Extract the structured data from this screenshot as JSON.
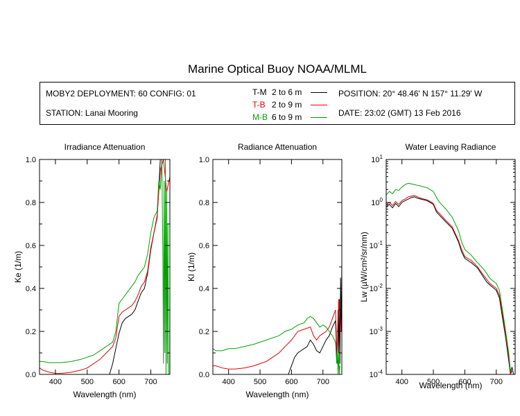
{
  "title": "Marine Optical Buoy NOAA/MLML",
  "info": {
    "deployment": "MOBY2 DEPLOYMENT: 60 CONFIG: 01",
    "station": "STATION: Lanai Mooring",
    "position": "POSITION: 20° 48.46' N   157° 11.29' W",
    "date": "DATE: 23:02 (GMT) 13 Feb 2016",
    "legend": [
      {
        "name": "T-M",
        "range": "2 to 6  m",
        "color": "#000000"
      },
      {
        "name": "T-B",
        "range": "2 to 9  m",
        "color": "#e00000"
      },
      {
        "name": "M-B",
        "range": "6 to 9  m",
        "color": "#00a000"
      }
    ]
  },
  "chart_data": [
    {
      "type": "line",
      "title": "Irradiance Attenuation",
      "xlabel": "Wavelength (nm)",
      "ylabel": "Ke  (1/m)",
      "xlim": [
        350,
        760
      ],
      "ylim": [
        0,
        1.0
      ],
      "xticks": [
        "400",
        "500",
        "600",
        "700"
      ],
      "yticks": [
        "0.0",
        "0.2",
        "0.4",
        "0.6",
        "0.8",
        "1.0"
      ],
      "series": [
        {
          "name": "T-M",
          "color": "#000000",
          "x": [
            570,
            580,
            590,
            600,
            610,
            620,
            630,
            640,
            650,
            660,
            670,
            680,
            690,
            700,
            710,
            720,
            730
          ],
          "y": [
            0.0,
            0.05,
            0.12,
            0.19,
            0.24,
            0.26,
            0.27,
            0.28,
            0.3,
            0.34,
            0.38,
            0.4,
            0.47,
            0.58,
            0.66,
            0.73,
            1.0
          ]
        },
        {
          "name": "T-B",
          "color": "#e00000",
          "x": [
            350,
            360,
            380,
            400,
            420,
            450,
            480,
            500,
            520,
            540,
            560,
            580,
            590,
            600,
            610,
            620,
            630,
            640,
            650,
            660,
            670,
            680,
            690,
            700,
            710,
            720,
            730,
            740,
            750,
            760
          ],
          "y": [
            0.03,
            0.02,
            0.01,
            0.005,
            0.005,
            0.01,
            0.02,
            0.03,
            0.05,
            0.07,
            0.1,
            0.13,
            0.17,
            0.27,
            0.29,
            0.3,
            0.31,
            0.32,
            0.34,
            0.37,
            0.41,
            0.43,
            0.48,
            0.59,
            0.66,
            0.74,
            0.95,
            1.0,
            0.85,
            0.92
          ]
        },
        {
          "name": "M-B",
          "color": "#00a000",
          "x": [
            350,
            360,
            380,
            400,
            420,
            450,
            480,
            500,
            520,
            540,
            560,
            580,
            590,
            600,
            610,
            620,
            630,
            640,
            650,
            660,
            670,
            680,
            690,
            700,
            710,
            720,
            725,
            730,
            735,
            738,
            740,
            742,
            744,
            746,
            748,
            750,
            752,
            754,
            756
          ],
          "y": [
            0.06,
            0.06,
            0.055,
            0.055,
            0.055,
            0.06,
            0.07,
            0.08,
            0.09,
            0.11,
            0.13,
            0.15,
            0.2,
            0.33,
            0.35,
            0.37,
            0.39,
            0.41,
            0.43,
            0.46,
            0.48,
            0.5,
            0.56,
            0.66,
            0.73,
            0.76,
            0.9,
            0.86,
            1.0,
            0.55,
            0.05,
            0.9,
            0.1,
            1.0,
            0.0,
            0.85,
            0.05,
            0.7,
            0.0
          ]
        }
      ]
    },
    {
      "type": "line",
      "title": "Radiance Attenuation",
      "xlabel": "Wavelength (nm)",
      "ylabel": "Kl  (1/m)",
      "xlim": [
        350,
        760
      ],
      "ylim": [
        0,
        1.0
      ],
      "xticks": [
        "400",
        "500",
        "600",
        "700"
      ],
      "yticks": [
        "0.0",
        "0.2",
        "0.4",
        "0.6",
        "0.8",
        "1.0"
      ],
      "series": [
        {
          "name": "T-M",
          "color": "#000000",
          "x": [
            590,
            600,
            610,
            620,
            630,
            640,
            650,
            660,
            670,
            680,
            690,
            700,
            710,
            720,
            730,
            740,
            745,
            748,
            750,
            752,
            754,
            756,
            758,
            760
          ],
          "y": [
            0.0,
            0.04,
            0.08,
            0.1,
            0.11,
            0.12,
            0.13,
            0.16,
            0.14,
            0.11,
            0.1,
            0.13,
            0.16,
            0.18,
            0.22,
            0.25,
            0.05,
            0.3,
            0.1,
            0.35,
            0.05,
            0.45,
            0.2,
            0.52
          ]
        },
        {
          "name": "T-B",
          "color": "#e00000",
          "x": [
            350,
            360,
            380,
            400,
            420,
            450,
            480,
            500,
            520,
            540,
            560,
            580,
            600,
            620,
            640,
            660,
            670,
            680,
            690,
            700,
            710,
            720,
            730,
            740,
            745,
            750,
            755
          ],
          "y": [
            0.04,
            0.04,
            0.03,
            0.025,
            0.025,
            0.03,
            0.04,
            0.05,
            0.06,
            0.08,
            0.1,
            0.13,
            0.16,
            0.2,
            0.21,
            0.22,
            0.18,
            0.16,
            0.18,
            0.19,
            0.2,
            0.22,
            0.26,
            0.3,
            0.08,
            0.35,
            0.2
          ]
        },
        {
          "name": "M-B",
          "color": "#00a000",
          "x": [
            350,
            360,
            380,
            400,
            420,
            450,
            480,
            500,
            520,
            540,
            560,
            580,
            600,
            620,
            640,
            650,
            660,
            670,
            680,
            690,
            700,
            710,
            720,
            730,
            740,
            744,
            746,
            748,
            750,
            752,
            754
          ],
          "y": [
            0.12,
            0.11,
            0.11,
            0.12,
            0.12,
            0.13,
            0.14,
            0.15,
            0.16,
            0.17,
            0.18,
            0.2,
            0.21,
            0.23,
            0.24,
            0.26,
            0.27,
            0.26,
            0.24,
            0.22,
            0.23,
            0.22,
            0.2,
            0.18,
            0.15,
            0.05,
            0.12,
            0.0,
            0.1,
            0.0,
            0.04
          ]
        }
      ]
    },
    {
      "type": "line",
      "title": "Water Leaving Radiance",
      "xlabel": "Wavelength (nm)",
      "ylabel": "Lw  (µW/cm²/sr/nm)",
      "xlim": [
        350,
        760
      ],
      "ylim": [
        0.0001,
        10
      ],
      "yscale": "log",
      "xticks": [
        "400",
        "500",
        "600",
        "700"
      ],
      "yticks": [
        {
          "base": "10",
          "exp": "-4"
        },
        {
          "base": "10",
          "exp": "-3"
        },
        {
          "base": "10",
          "exp": "-2"
        },
        {
          "base": "10",
          "exp": "-1"
        },
        {
          "base": "10",
          "exp": "0"
        },
        {
          "base": "10",
          "exp": "1"
        }
      ],
      "series": [
        {
          "name": "T-M",
          "color": "#000000",
          "x": [
            350,
            360,
            370,
            380,
            390,
            400,
            410,
            420,
            430,
            440,
            450,
            460,
            480,
            500,
            510,
            520,
            540,
            560,
            580,
            590,
            600,
            620,
            640,
            660,
            670,
            680,
            700,
            710,
            720,
            730,
            740,
            745,
            750,
            755
          ],
          "y": [
            0.8,
            0.9,
            0.75,
            0.95,
            0.8,
            1.0,
            1.1,
            1.2,
            1.3,
            1.35,
            1.25,
            1.2,
            1.1,
            0.9,
            0.6,
            0.5,
            0.35,
            0.25,
            0.12,
            0.07,
            0.05,
            0.04,
            0.03,
            0.018,
            0.014,
            0.012,
            0.009,
            0.006,
            0.002,
            0.0007,
            0.0002,
            0.0001,
            0.00015,
            0.0001
          ]
        },
        {
          "name": "T-B",
          "color": "#e00000",
          "x": [
            350,
            360,
            370,
            380,
            390,
            400,
            410,
            420,
            430,
            440,
            450,
            460,
            480,
            500,
            510,
            520,
            540,
            560,
            580,
            590,
            600,
            620,
            640,
            660,
            670,
            680,
            700,
            710,
            720,
            730,
            740,
            745,
            750
          ],
          "y": [
            0.9,
            1.0,
            0.85,
            1.05,
            0.9,
            1.1,
            1.2,
            1.35,
            1.4,
            1.45,
            1.35,
            1.25,
            1.15,
            0.95,
            0.65,
            0.55,
            0.38,
            0.27,
            0.13,
            0.08,
            0.055,
            0.045,
            0.032,
            0.02,
            0.016,
            0.013,
            0.01,
            0.007,
            0.0025,
            0.0008,
            0.00025,
            0.0001,
            0.00012
          ]
        },
        {
          "name": "M-B",
          "color": "#00a000",
          "x": [
            350,
            360,
            370,
            380,
            390,
            400,
            410,
            420,
            430,
            440,
            450,
            460,
            480,
            500,
            510,
            520,
            540,
            560,
            580,
            590,
            600,
            620,
            640,
            660,
            670,
            680,
            700,
            710,
            720,
            730,
            740,
            745,
            750
          ],
          "y": [
            1.5,
            1.8,
            1.6,
            2.0,
            1.9,
            2.3,
            2.6,
            2.8,
            2.7,
            2.6,
            2.5,
            2.4,
            2.2,
            1.8,
            1.3,
            1.0,
            0.7,
            0.45,
            0.22,
            0.12,
            0.08,
            0.06,
            0.04,
            0.028,
            0.022,
            0.017,
            0.013,
            0.009,
            0.003,
            0.001,
            0.0003,
            0.00012,
            0.00015
          ]
        }
      ]
    }
  ]
}
